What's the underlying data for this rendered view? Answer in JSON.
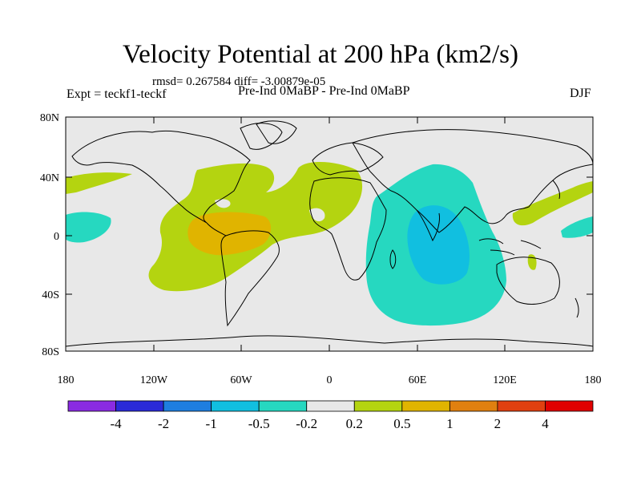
{
  "title": "Velocity Potential at 200 hPa (km2/s)",
  "stats": "rmsd= 0.267584 diff= -3.00879e-05",
  "expt": "Expt = teckf1-teckf",
  "subtitle": "Pre-Ind 0MaBP - Pre-Ind 0MaBP",
  "season": "DJF",
  "lat_ticks": [
    "80N",
    "40N",
    "0",
    "40S",
    "80S"
  ],
  "lon_ticks": [
    "180",
    "120W",
    "60W",
    "0",
    "60E",
    "120E",
    "180"
  ],
  "colorbar": {
    "colors": [
      "#8a2be2",
      "#2a2ad8",
      "#1e7ee0",
      "#11bfe0",
      "#26d8c0",
      "#e8e8e8",
      "#b4d410",
      "#e0b400",
      "#e08010",
      "#e04010",
      "#e00000"
    ],
    "labels": [
      "-4",
      "-2",
      "-1",
      "-0.5",
      "-0.2",
      "0.2",
      "0.5",
      "1",
      "2",
      "4"
    ]
  },
  "colors": {
    "land_outline": "#000000",
    "background": "#e8e8e8",
    "positive_weak": "#b4d410",
    "positive_mid": "#e0b400",
    "negative_weak": "#26d8c0",
    "negative_mid": "#11bfe0"
  }
}
